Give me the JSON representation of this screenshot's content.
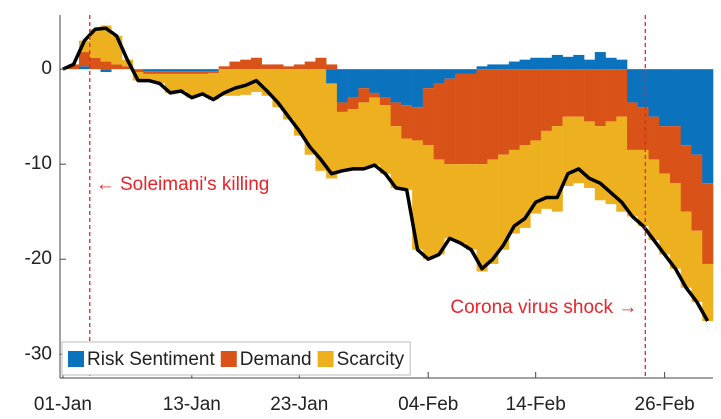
{
  "chart_data": {
    "type": "stacked_bar_line",
    "categories": [
      "01-Jan",
      null,
      null,
      null,
      null,
      null,
      null,
      null,
      null,
      null,
      null,
      null,
      "13-Jan",
      null,
      null,
      null,
      null,
      null,
      null,
      null,
      null,
      null,
      "23-Jan",
      null,
      null,
      null,
      null,
      null,
      null,
      null,
      null,
      null,
      null,
      null,
      "04-Feb",
      null,
      null,
      null,
      null,
      null,
      null,
      null,
      null,
      null,
      "14-Feb",
      null,
      null,
      null,
      null,
      null,
      null,
      null,
      null,
      null,
      null,
      null,
      "26-Feb",
      null,
      null,
      null,
      null
    ],
    "series": [
      {
        "name": "Risk Sentiment",
        "color": "#0b72bd",
        "values": [
          0,
          0,
          0.3,
          0,
          -0.3,
          0,
          0,
          0,
          -0.2,
          -0.2,
          -0.2,
          -0.2,
          -0.2,
          -0.2,
          -0.2,
          0,
          0,
          0,
          0,
          0,
          0,
          0,
          0,
          0,
          0,
          -1.5,
          -3.5,
          -3,
          -2,
          -2.5,
          -3,
          -3.5,
          -3.8,
          -4,
          -2,
          -1.5,
          -1,
          -0.5,
          -0.5,
          0.3,
          0.5,
          0.5,
          0.8,
          1,
          1.2,
          1.2,
          1.5,
          1.3,
          1.5,
          1,
          1.8,
          1.2,
          1,
          -3.5,
          -4,
          -5,
          -6,
          -6,
          -8,
          -9,
          -12
        ]
      },
      {
        "name": "Demand",
        "color": "#d95319",
        "values": [
          0,
          0.5,
          1.5,
          1.2,
          0.8,
          0.5,
          0.3,
          -0.3,
          -0.3,
          -0.3,
          -0.3,
          -0.3,
          -0.3,
          -0.3,
          -0.2,
          0.3,
          0.8,
          1,
          1.2,
          0.5,
          0.5,
          0.3,
          0.5,
          0.8,
          1.2,
          0.5,
          -1,
          -1.2,
          -1.5,
          -0.5,
          -0.8,
          -2.5,
          -3.5,
          -3.5,
          -6,
          -8,
          -9,
          -9.5,
          -9.5,
          -10,
          -9.5,
          -9,
          -8.5,
          -8,
          -7.5,
          -6.5,
          -6,
          -5,
          -5,
          -5.5,
          -6,
          -5.5,
          -5,
          -5,
          -4.5,
          -4.5,
          -5,
          -6,
          -7,
          -8,
          -8.5
        ]
      },
      {
        "name": "Scarcity",
        "color": "#edb120",
        "values": [
          0,
          0,
          1.2,
          3,
          3.8,
          3,
          0.7,
          -0.9,
          -0.7,
          -1,
          -2,
          -1.8,
          -2.5,
          -2.1,
          -2.8,
          -2.8,
          -2.8,
          -2.7,
          -2.4,
          -2.8,
          -4,
          -5.3,
          -7,
          -9,
          -10.7,
          -10,
          -6.2,
          -6.3,
          -7,
          -7.1,
          -7.2,
          -6.5,
          -5.4,
          -11.5,
          -12,
          -10,
          -7.8,
          -8.3,
          -9,
          -11.3,
          -11,
          -10,
          -8.8,
          -8.7,
          -7.7,
          -8.2,
          -9,
          -7.3,
          -7,
          -7,
          -7.8,
          -8.7,
          -10,
          -7,
          -8,
          -8.5,
          -8.5,
          -9,
          -8,
          -7.5,
          -6
        ]
      }
    ],
    "total": {
      "color": "#000000",
      "values": [
        0,
        0.5,
        3,
        4.2,
        4.3,
        3.5,
        1,
        -1.2,
        -1.2,
        -1.5,
        -2.5,
        -2.3,
        -3,
        -2.6,
        -3.2,
        -2.5,
        -2,
        -1.7,
        -1.2,
        -2.3,
        -3.5,
        -5,
        -6.5,
        -8.2,
        -9.5,
        -11,
        -10.7,
        -10.5,
        -10.5,
        -10.1,
        -11,
        -12.5,
        -12.7,
        -19,
        -20,
        -19.5,
        -17.8,
        -18.3,
        -19,
        -21,
        -20,
        -18.5,
        -16.5,
        -15.7,
        -14,
        -13.5,
        -13.5,
        -11,
        -10.5,
        -11.5,
        -12,
        -13,
        -14,
        -15.5,
        -16.5,
        -18,
        -19.5,
        -21,
        -23,
        -24.5,
        -26.5
      ]
    },
    "annotations": [
      {
        "text": "← Soleimani's killing",
        "x": 2.5,
        "color": "#e8242a"
      },
      {
        "text": "Corona virus shock →",
        "x": 54.2,
        "color": "#e8242a"
      }
    ],
    "ylim": [
      -32.5,
      5.7
    ],
    "yticks": [
      0,
      -10,
      -20,
      -30
    ],
    "legend": "lower left"
  }
}
